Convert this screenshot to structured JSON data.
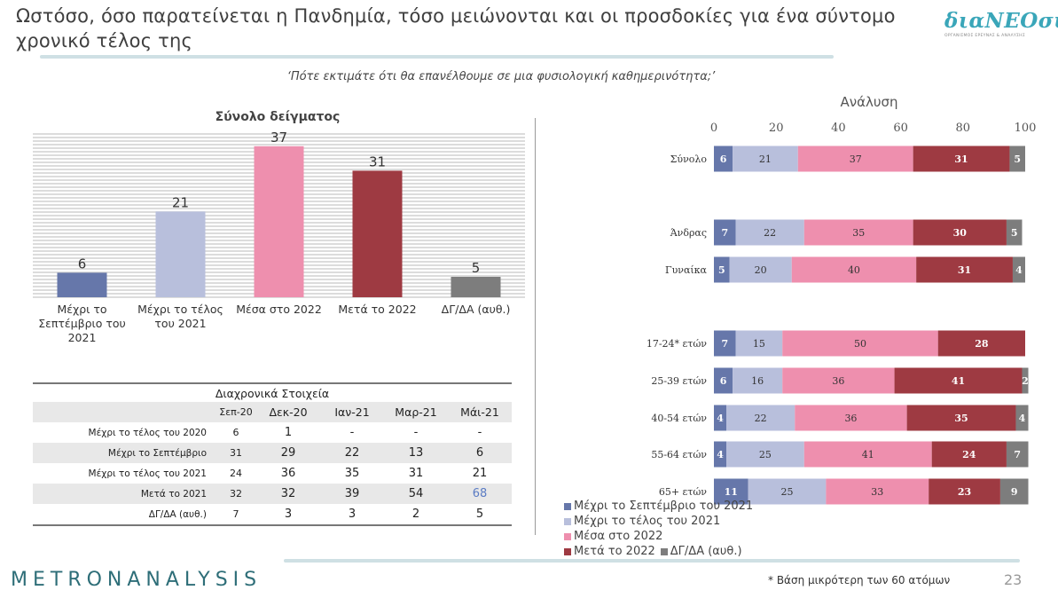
{
  "header": {
    "title": "Ωστόσο, όσο παρατείνεται η Πανδημία, τόσο μειώνονται και οι προσδοκίες για ένα σύντομο χρονικό τέλος της",
    "logo_text": "διαΝΕΟσις",
    "logo_subtitle": "ΟΡΓΑΝΙΣΜΟΣ ΕΡΕΥΝΑΣ & ΑΝΑΛΥΣΗΣ",
    "question": "‘Πότε εκτιμάτε ότι θα επανέλθουμε σε μια φυσιολογική καθημερινότητα;’"
  },
  "colors": {
    "c1": "#6677aa",
    "c2": "#b8bfdc",
    "c3": "#ee8fae",
    "c4": "#9e3a42",
    "c5": "#7d7d7d",
    "accent": "#3aa6b9"
  },
  "chart_data": [
    {
      "type": "bar",
      "title": "Σύνολο δείγματος",
      "categories": [
        "Μέχρι το Σεπτέμβριο του 2021",
        "Μέχρι το τέλος του 2021",
        "Μέσα στο 2022",
        "Μετά το 2022",
        "ΔΓ/ΔΑ (αυθ.)"
      ],
      "category_lines": [
        [
          "Μέχρι το",
          "Σεπτέμβριο του",
          "2021"
        ],
        [
          "Μέχρι το τέλος",
          "του 2021"
        ],
        [
          "Μέσα στο 2022"
        ],
        [
          "Μετά το 2022"
        ],
        [
          "ΔΓ/ΔΑ (αυθ.)"
        ]
      ],
      "values": [
        6,
        21,
        37,
        31,
        5
      ],
      "ylim": [
        0,
        40
      ]
    },
    {
      "type": "bar",
      "orientation": "horizontal",
      "stacked": true,
      "title": "Ανάλυση",
      "xlim": [
        0,
        100
      ],
      "x_ticks": [
        0,
        20,
        40,
        60,
        80,
        100
      ],
      "categories": [
        "Σύνολο",
        "Άνδρας",
        "Γυναίκα",
        "17-24* ετών",
        "25-39 ετών",
        "40-54 ετών",
        "55-64 ετών",
        "65+ ετών"
      ],
      "series": [
        {
          "name": "Μέχρι το Σεπτέμβριο του 2021",
          "values": [
            6,
            7,
            5,
            7,
            6,
            4,
            4,
            11
          ]
        },
        {
          "name": "Μέχρι το τέλος του 2021",
          "values": [
            21,
            22,
            20,
            15,
            16,
            22,
            25,
            25
          ]
        },
        {
          "name": "Μέσα στο 2022",
          "values": [
            37,
            35,
            40,
            50,
            36,
            36,
            41,
            33
          ]
        },
        {
          "name": "Μετά το 2022",
          "values": [
            31,
            30,
            31,
            28,
            41,
            35,
            24,
            23
          ]
        },
        {
          "name": "ΔΓ/ΔΑ (αυθ.)",
          "values": [
            5,
            5,
            4,
            0,
            2,
            4,
            7,
            9
          ]
        }
      ],
      "legend_position": "bottom-left"
    },
    {
      "type": "table",
      "title": "Διαχρονικά Στοιχεία",
      "columns": [
        "Σεπ-20",
        "Δεκ-20",
        "Ιαν-21",
        "Μαρ-21",
        "Μάι-21"
      ],
      "rows": [
        {
          "label": "Μέχρι το τέλος του 2020",
          "values": [
            "6",
            "1",
            "-",
            "-",
            "-"
          ]
        },
        {
          "label": "Μέχρι το Σεπτέμβριο",
          "values": [
            "31",
            "29",
            "22",
            "13",
            "6"
          ]
        },
        {
          "label": "Μέχρι το τέλος του 2021",
          "values": [
            "24",
            "36",
            "35",
            "31",
            "21"
          ]
        },
        {
          "label": "Μετά το 2021",
          "values": [
            "32",
            "32",
            "39",
            "54",
            "68"
          ]
        },
        {
          "label": "ΔΓ/ΔΑ (αυθ.)",
          "values": [
            "7",
            "3",
            "3",
            "2",
            "5"
          ]
        }
      ]
    }
  ],
  "footer": {
    "brand": "METRONANALYSIS",
    "footnote": "* Βάση μικρότερη των 60 ατόμων",
    "page_number": "23"
  }
}
